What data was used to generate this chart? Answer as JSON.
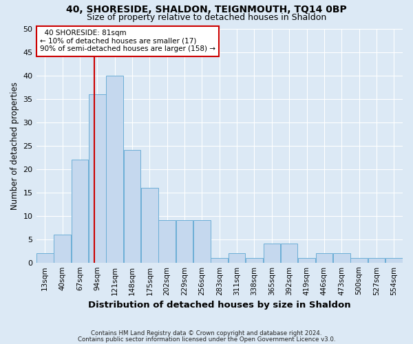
{
  "title": "40, SHORESIDE, SHALDON, TEIGNMOUTH, TQ14 0BP",
  "subtitle": "Size of property relative to detached houses in Shaldon",
  "xlabel": "Distribution of detached houses by size in Shaldon",
  "ylabel": "Number of detached properties",
  "bin_labels": [
    "13sqm",
    "40sqm",
    "67sqm",
    "94sqm",
    "121sqm",
    "148sqm",
    "175sqm",
    "202sqm",
    "229sqm",
    "256sqm",
    "283sqm",
    "311sqm",
    "338sqm",
    "365sqm",
    "392sqm",
    "419sqm",
    "446sqm",
    "473sqm",
    "500sqm",
    "527sqm",
    "554sqm"
  ],
  "bar_values": [
    2,
    6,
    22,
    36,
    40,
    24,
    16,
    9,
    9,
    9,
    1,
    2,
    1,
    4,
    4,
    1,
    2,
    2,
    1,
    1,
    1
  ],
  "bar_color": "#c5d8ee",
  "bar_edge_color": "#6baed6",
  "ylim": [
    0,
    50
  ],
  "yticks": [
    0,
    5,
    10,
    15,
    20,
    25,
    30,
    35,
    40,
    45,
    50
  ],
  "marker_label": "40 SHORESIDE: 81sqm",
  "annotation_line1": "← 10% of detached houses are smaller (17)",
  "annotation_line2": "90% of semi-detached houses are larger (158) →",
  "annotation_box_color": "#ffffff",
  "annotation_box_edge_color": "#cc0000",
  "vline_color": "#cc0000",
  "vline_x": 2.85,
  "footer1": "Contains HM Land Registry data © Crown copyright and database right 2024.",
  "footer2": "Contains public sector information licensed under the Open Government Licence v3.0.",
  "bg_color": "#dce9f5",
  "plot_bg_color": "#dce9f5",
  "grid_color": "#ffffff",
  "title_fontsize": 10,
  "subtitle_fontsize": 9,
  "axis_label_fontsize": 8.5,
  "tick_fontsize": 7.5
}
